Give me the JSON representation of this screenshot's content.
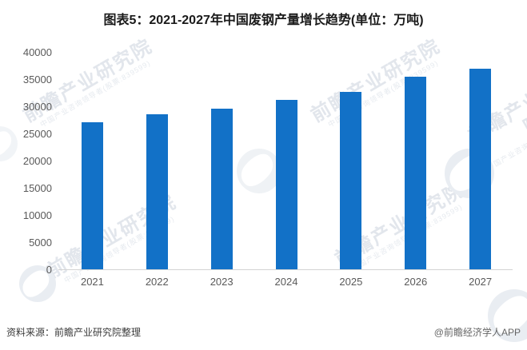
{
  "title": "图表5：2021-2027年中国废钢产量增长趋势(单位：万吨)",
  "footer": {
    "source_left": "资料来源：前瞻产业研究院整理",
    "source_right": "@前瞻经济学人APP"
  },
  "watermark": {
    "brand": "前瞻产业研究院",
    "subtitle": "中国产业咨询领导者(股票:839599)",
    "logo": "qianzhan-swoosh-logo"
  },
  "colors": {
    "bar": "#1271c7",
    "axis_line": "#d4d4d4",
    "tick_label": "#595959",
    "title": "#1a1a1a",
    "watermark": "#e6eaef"
  },
  "chart_data": {
    "type": "bar",
    "title": "图表5：2021-2027年中国废钢产量增长趋势(单位：万吨)",
    "unit": "万吨",
    "categories": [
      "2021",
      "2022",
      "2023",
      "2024",
      "2025",
      "2026",
      "2027"
    ],
    "values": [
      27000,
      28500,
      29600,
      31200,
      32600,
      35500,
      36900
    ],
    "xlabel": "",
    "ylabel": "",
    "ylim": [
      0,
      40000
    ],
    "yticks": [
      0,
      5000,
      10000,
      15000,
      20000,
      25000,
      30000,
      35000,
      40000
    ],
    "grid": false,
    "legend": false
  }
}
